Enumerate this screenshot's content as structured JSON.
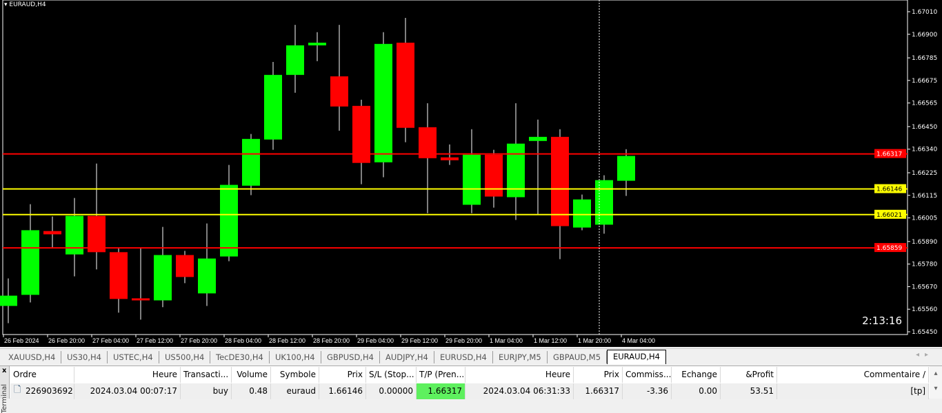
{
  "window": {
    "title": "EURAUD,H4",
    "timer": "2:13:16"
  },
  "colors": {
    "bull": "#00ff00",
    "bear": "#ff0000",
    "level_red": "#ff0000",
    "level_yellow": "#ffff00",
    "bg": "#000000"
  },
  "price_axis": {
    "ticks": [
      "1.67010",
      "1.66900",
      "1.66785",
      "1.66675",
      "1.66565",
      "1.66450",
      "1.66340",
      "1.66225",
      "1.66115",
      "1.66005",
      "1.65890",
      "1.65780",
      "1.65670",
      "1.65560",
      "1.65450"
    ],
    "range": [
      1.6545,
      1.6701
    ]
  },
  "levels": [
    {
      "price": 1.66317,
      "label": "1.66317",
      "color": "red"
    },
    {
      "price": 1.66146,
      "label": "1.66146",
      "color": "yellow"
    },
    {
      "price": 1.66021,
      "label": "1.66021",
      "color": "yellow"
    },
    {
      "price": 1.65859,
      "label": "1.65859",
      "color": "red"
    }
  ],
  "time_axis": [
    "26 Feb 2024",
    "26 Feb 20:00",
    "27 Feb 04:00",
    "27 Feb 12:00",
    "27 Feb 20:00",
    "28 Feb 04:00",
    "28 Feb 12:00",
    "28 Feb 20:00",
    "29 Feb 04:00",
    "29 Feb 12:00",
    "29 Feb 20:00",
    "1 Mar 04:00",
    "1 Mar 12:00",
    "1 Mar 20:00",
    "4 Mar 04:00"
  ],
  "candles": [
    [
      1.65576,
      1.6571,
      1.65492,
      1.65626
    ],
    [
      1.6563,
      1.66072,
      1.65593,
      1.65945
    ],
    [
      1.65941,
      1.66012,
      1.65861,
      1.65925
    ],
    [
      1.65827,
      1.66102,
      1.6572,
      1.66015
    ],
    [
      1.66015,
      1.6627,
      1.65754,
      1.65838
    ],
    [
      1.65838,
      1.65861,
      1.65543,
      1.6561
    ],
    [
      1.65613,
      1.65861,
      1.65509,
      1.65603
    ],
    [
      1.65603,
      1.65961,
      1.6557,
      1.65824
    ],
    [
      1.65824,
      1.65844,
      1.65687,
      1.65717
    ],
    [
      1.65637,
      1.65978,
      1.65576,
      1.65807
    ],
    [
      1.65817,
      1.66263,
      1.65794,
      1.66166
    ],
    [
      1.66162,
      1.66414,
      1.66116,
      1.6639
    ],
    [
      1.66387,
      1.66765,
      1.66337,
      1.66702
    ],
    [
      1.66702,
      1.66946,
      1.66615,
      1.66846
    ],
    [
      1.66846,
      1.6691,
      1.66769,
      1.66859
    ],
    [
      1.66695,
      1.66946,
      1.6643,
      1.66548
    ],
    [
      1.66551,
      1.66581,
      1.66169,
      1.66273
    ],
    [
      1.66276,
      1.6691,
      1.66203,
      1.66853
    ],
    [
      1.66859,
      1.6698,
      1.66374,
      1.66444
    ],
    [
      1.66447,
      1.66564,
      1.66028,
      1.66296
    ],
    [
      1.663,
      1.66363,
      1.66263,
      1.66286
    ],
    [
      1.66069,
      1.66437,
      1.66028,
      1.66313
    ],
    [
      1.66313,
      1.66337,
      1.66055,
      1.66109
    ],
    [
      1.66106,
      1.66564,
      1.65995,
      1.66367
    ],
    [
      1.6638,
      1.66484,
      1.66022,
      1.664
    ],
    [
      1.664,
      1.66437,
      1.65804,
      1.65965
    ],
    [
      1.65958,
      1.66119,
      1.65945,
      1.66095
    ],
    [
      1.65972,
      1.66213,
      1.65928,
      1.66189
    ],
    [
      1.66186,
      1.6634,
      1.66112,
      1.66307
    ]
  ],
  "tabs": [
    "XAUUSD,H4",
    "US30,H4",
    "USTEC,H4",
    "US500,H4",
    "TecDE30,H4",
    "UK100,H4",
    "GBPUSD,H4",
    "AUDJPY,H4",
    "EURUSD,H4",
    "EURJPY,M5",
    "GBPAUD,M5",
    "EURAUD,H4"
  ],
  "active_tab": "EURAUD,H4",
  "terminal": {
    "side_label": "Terminal",
    "close": "x",
    "columns": [
      "Ordre",
      "Heure",
      "Transacti...",
      "Volume",
      "Symbole",
      "Prix",
      "S/L (Stop...",
      "T/P (Pren...",
      "Heure",
      "Prix",
      "Commiss...",
      "Echange",
      "&Profit",
      "Commentaire  /"
    ],
    "rows": [
      [
        "226903692",
        "2024.03.04 00:07:17",
        "buy",
        "0.48",
        "euraud",
        "1.66146",
        "0.00000",
        "1.66317",
        "2024.03.04 06:31:33",
        "1.66317",
        "-3.36",
        "0.00",
        "53.51",
        "[tp]"
      ]
    ]
  }
}
